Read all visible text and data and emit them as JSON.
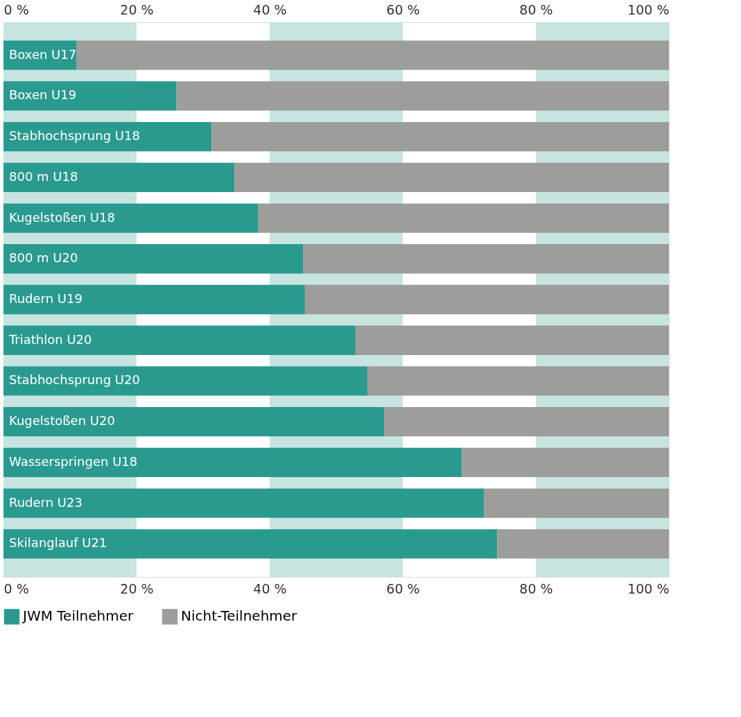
{
  "chart_data": {
    "type": "bar",
    "orientation": "horizontal",
    "stacked": true,
    "categories": [
      "Boxen U17",
      "Boxen U19",
      "Stabhochsprung U18",
      "800 m U18",
      "Kugelstoßen U18",
      "800 m U20",
      "Rudern U19",
      "Triathlon U20",
      "Stabhochsprung U20",
      "Kugelstoßen U20",
      "Wasserspringen U18",
      "Rudern U23",
      "Skilanglauf U21"
    ],
    "series": [
      {
        "name": "JWM Teilnehmer",
        "color": "#2a9a8f",
        "values": [
          11,
          26,
          31.3,
          34.7,
          38.3,
          45,
          45.3,
          52.9,
          54.7,
          57.2,
          68.9,
          72.2,
          74.2
        ]
      },
      {
        "name": "Nicht-Teilnehmer",
        "color": "#9d9d9b",
        "values": [
          89,
          74,
          68.7,
          65.3,
          61.7,
          55,
          54.7,
          47.1,
          45.3,
          42.8,
          31.1,
          27.8,
          25.8
        ]
      }
    ],
    "xlim": [
      0,
      100
    ],
    "xticks": [
      {
        "value": 0,
        "label": "0 %"
      },
      {
        "value": 20,
        "label": "20 %"
      },
      {
        "value": 40,
        "label": "40 %"
      },
      {
        "value": 60,
        "label": "60 %"
      },
      {
        "value": 80,
        "label": "80 %"
      },
      {
        "value": 100,
        "label": "100 %"
      }
    ],
    "x2lim": [
      0,
      100
    ],
    "x2ticks": [
      {
        "value": 0,
        "label": "0 %"
      },
      {
        "value": 20,
        "label": "20 %"
      },
      {
        "value": 40,
        "label": "40 %"
      },
      {
        "value": 60,
        "label": "60 %"
      },
      {
        "value": 80,
        "label": "80 %"
      },
      {
        "value": 100,
        "label": "100 %"
      }
    ],
    "bands": [
      {
        "axis": "x",
        "from": 0,
        "to": 20,
        "color": "#c8e4e0"
      },
      {
        "axis": "x",
        "from": 40,
        "to": 60,
        "color": "#c8e4e0"
      },
      {
        "axis": "x",
        "from": 80,
        "to": 100,
        "color": "#c8e4e0"
      }
    ],
    "legend": "bottom",
    "grid": false,
    "tick_labels": "x"
  }
}
